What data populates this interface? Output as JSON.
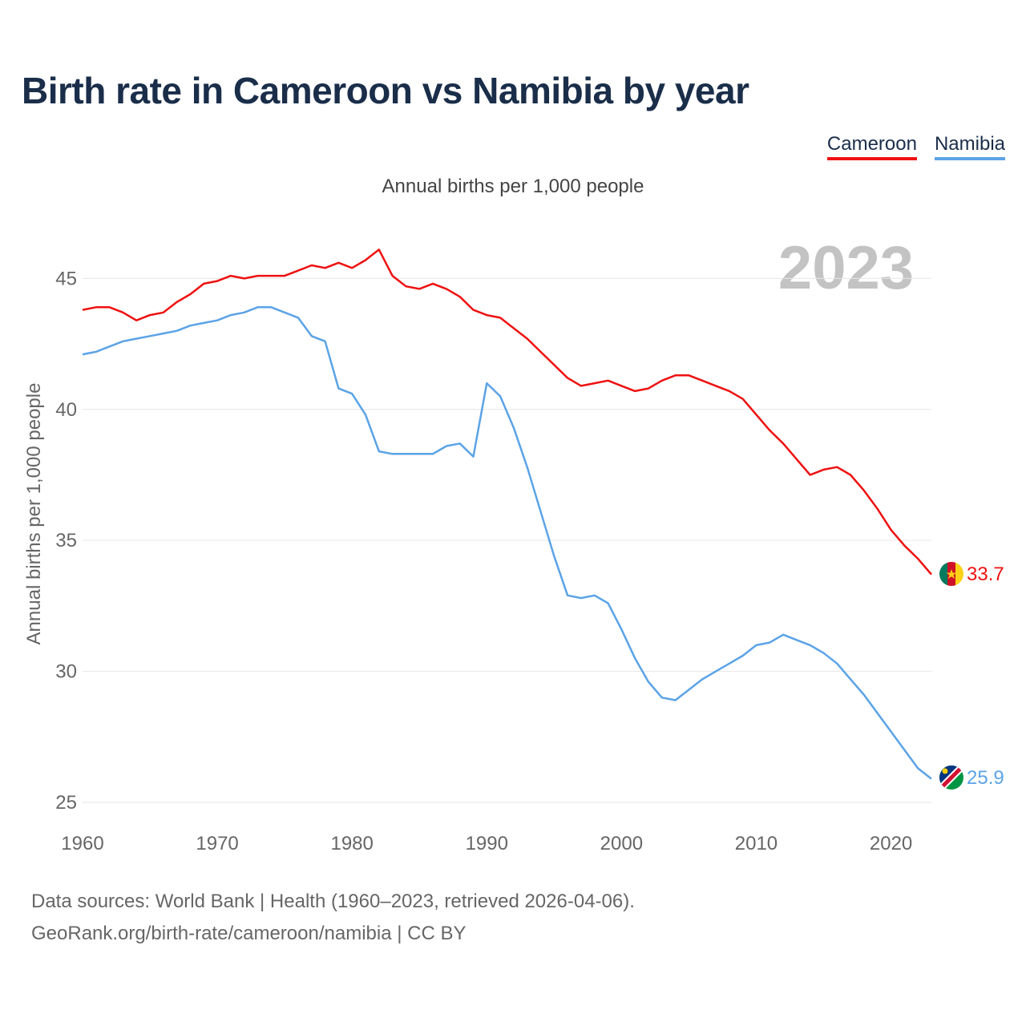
{
  "title": "Birth rate in Cameroon vs Namibia by year",
  "legend": [
    {
      "label": "Cameroon",
      "color": "#ee1111"
    },
    {
      "label": "Namibia",
      "color": "#5ba3e6"
    }
  ],
  "footer": {
    "line1": "Data sources: World Bank | Health (1960–2023, retrieved 2026-04-06).",
    "line2": "GeoRank.org/birth-rate/cameroon/namibia | CC BY"
  },
  "chart_data": {
    "type": "line",
    "title": "Annual births per 1,000 people",
    "ylabel": "Annual births per 1,000 people",
    "xlabel": "",
    "year_watermark": "2023",
    "xlim": [
      1960,
      2023
    ],
    "ylim": [
      25,
      47
    ],
    "xticks": [
      1960,
      1970,
      1980,
      1990,
      2000,
      2010,
      2020
    ],
    "yticks": [
      25,
      30,
      35,
      40,
      45
    ],
    "grid": true,
    "legend_position": "top-right",
    "x": [
      1960,
      1961,
      1962,
      1963,
      1964,
      1965,
      1966,
      1967,
      1968,
      1969,
      1970,
      1971,
      1972,
      1973,
      1974,
      1975,
      1976,
      1977,
      1978,
      1979,
      1980,
      1981,
      1982,
      1983,
      1984,
      1985,
      1986,
      1987,
      1988,
      1989,
      1990,
      1991,
      1992,
      1993,
      1994,
      1995,
      1996,
      1997,
      1998,
      1999,
      2000,
      2001,
      2002,
      2003,
      2004,
      2005,
      2006,
      2007,
      2008,
      2009,
      2010,
      2011,
      2012,
      2013,
      2014,
      2015,
      2016,
      2017,
      2018,
      2019,
      2020,
      2021,
      2022,
      2023
    ],
    "series": [
      {
        "name": "Cameroon",
        "color": "#ee1111",
        "end_label": "33.7",
        "values": [
          43.8,
          43.9,
          43.9,
          43.7,
          43.4,
          43.6,
          43.7,
          44.1,
          44.4,
          44.8,
          44.9,
          45.1,
          45.0,
          45.1,
          45.1,
          45.1,
          45.3,
          45.5,
          45.4,
          45.6,
          45.4,
          45.7,
          46.1,
          45.1,
          44.7,
          44.6,
          44.8,
          44.6,
          44.3,
          43.8,
          43.6,
          43.5,
          43.1,
          42.7,
          42.2,
          41.7,
          41.2,
          40.9,
          41.0,
          41.1,
          40.9,
          40.7,
          40.8,
          41.1,
          41.3,
          41.3,
          41.1,
          40.9,
          40.7,
          40.4,
          39.8,
          39.2,
          38.7,
          38.1,
          37.5,
          37.7,
          37.8,
          37.5,
          36.9,
          36.2,
          35.4,
          34.8,
          34.3,
          33.7
        ]
      },
      {
        "name": "Namibia",
        "color": "#5ba3e6",
        "end_label": "25.9",
        "values": [
          42.1,
          42.2,
          42.4,
          42.6,
          42.7,
          42.8,
          42.9,
          43.0,
          43.2,
          43.3,
          43.4,
          43.6,
          43.7,
          43.9,
          43.9,
          43.7,
          43.5,
          42.8,
          42.6,
          40.8,
          40.6,
          39.8,
          38.4,
          38.3,
          38.3,
          38.3,
          38.3,
          38.6,
          38.7,
          38.2,
          41.0,
          40.5,
          39.3,
          37.8,
          36.1,
          34.4,
          32.9,
          32.8,
          32.9,
          32.6,
          31.6,
          30.5,
          29.6,
          29.0,
          28.9,
          29.3,
          29.7,
          30.0,
          30.3,
          30.6,
          31.0,
          31.1,
          31.4,
          31.2,
          31.0,
          30.7,
          30.3,
          29.7,
          29.1,
          28.4,
          27.7,
          27.0,
          26.3,
          25.9
        ]
      }
    ]
  }
}
